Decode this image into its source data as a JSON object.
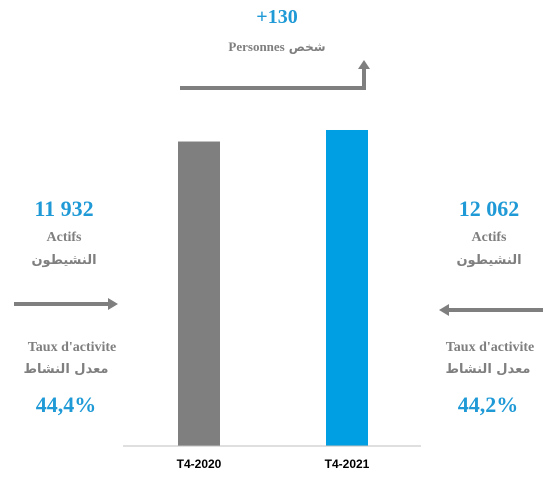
{
  "header": {
    "delta": "+130",
    "label_fr": "Personnes",
    "label_ar": "شخص"
  },
  "left": {
    "value": "11 932",
    "label_fr": "Actifs",
    "label_ar": "النشيطون",
    "rate_label_fr": "Taux d'activite",
    "rate_label_ar": "معدل النشاط",
    "rate_value": "44,4%"
  },
  "right": {
    "value": "12 062",
    "label_fr": "Actifs",
    "label_ar": "النشيطون",
    "rate_label_fr": "Taux d'activite",
    "rate_label_ar": "معدل النشاط",
    "rate_value": "44,2%"
  },
  "chart_data": {
    "type": "bar",
    "categories": [
      "T4-2020",
      "T4-2021"
    ],
    "values": [
      11932,
      12062
    ],
    "colors": [
      "#7f7f7f",
      "#009fe3"
    ],
    "ylim": [
      8500,
      12400
    ],
    "grid": false,
    "title": "",
    "xlabel": "",
    "ylabel": ""
  },
  "colors": {
    "accent": "#1f9ad6",
    "grey": "#7f7f7f"
  }
}
